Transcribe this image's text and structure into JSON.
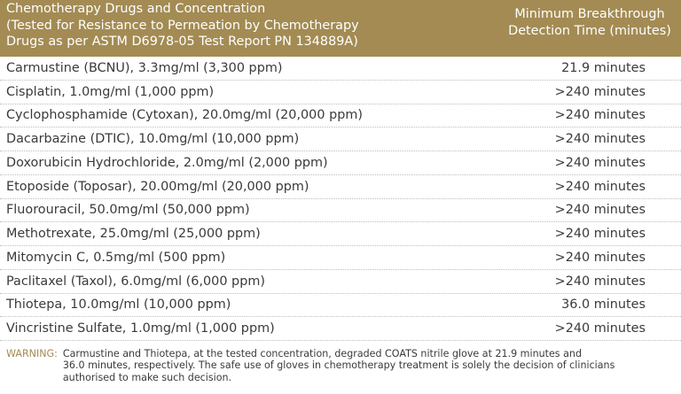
{
  "header": {
    "drug_lines": [
      "Chemotherapy Drugs and Concentration",
      "(Tested for Resistance to Permeation by Chemotherapy",
      "Drugs as per ASTM D6978-05 Test Report PN 134889A)"
    ],
    "time_lines": [
      "Minimum Breakthrough",
      "Detection Time (minutes)"
    ]
  },
  "rows": [
    {
      "drug": "Carmustine (BCNU), 3.3mg/ml (3,300 ppm)",
      "time": "21.9 minutes"
    },
    {
      "drug": "Cisplatin, 1.0mg/ml (1,000 ppm)",
      "time": ">240 minutes"
    },
    {
      "drug": "Cyclophosphamide (Cytoxan), 20.0mg/ml (20,000 ppm)",
      "time": ">240 minutes"
    },
    {
      "drug": "Dacarbazine (DTIC), 10.0mg/ml (10,000 ppm)",
      "time": ">240 minutes"
    },
    {
      "drug": "Doxorubicin Hydrochloride, 2.0mg/ml (2,000 ppm)",
      "time": ">240 minutes"
    },
    {
      "drug": "Etoposide (Toposar), 20.00mg/ml (20,000 ppm)",
      "time": ">240 minutes"
    },
    {
      "drug": "Fluorouracil, 50.0mg/ml (50,000 ppm)",
      "time": ">240 minutes"
    },
    {
      "drug": "Methotrexate, 25.0mg/ml (25,000 ppm)",
      "time": ">240 minutes"
    },
    {
      "drug": "Mitomycin C, 0.5mg/ml (500 ppm)",
      "time": ">240 minutes"
    },
    {
      "drug": "Paclitaxel (Taxol), 6.0mg/ml (6,000 ppm)",
      "time": ">240 minutes"
    },
    {
      "drug": "Thiotepa, 10.0mg/ml (10,000 ppm)",
      "time": "36.0 minutes"
    },
    {
      "drug": "Vincristine Sulfate, 1.0mg/ml (1,000 ppm)",
      "time": ">240 minutes"
    }
  ],
  "warning": {
    "label": "WARNING:",
    "lines": [
      "Carmustine and Thiotepa, at the tested concentration, degraded COATS nitrile glove at 21.9 minutes and",
      "36.0 minutes, respectively. The safe use of gloves in chemotherapy treatment is solely the decision of clinicians",
      "authorised to make such decision."
    ]
  },
  "colors": {
    "header_bg": "#a38b53",
    "header_text": "#ffffff",
    "body_text": "#3a3a3a",
    "warning_label": "#a38b53",
    "row_divider": "#bdbdbd"
  }
}
